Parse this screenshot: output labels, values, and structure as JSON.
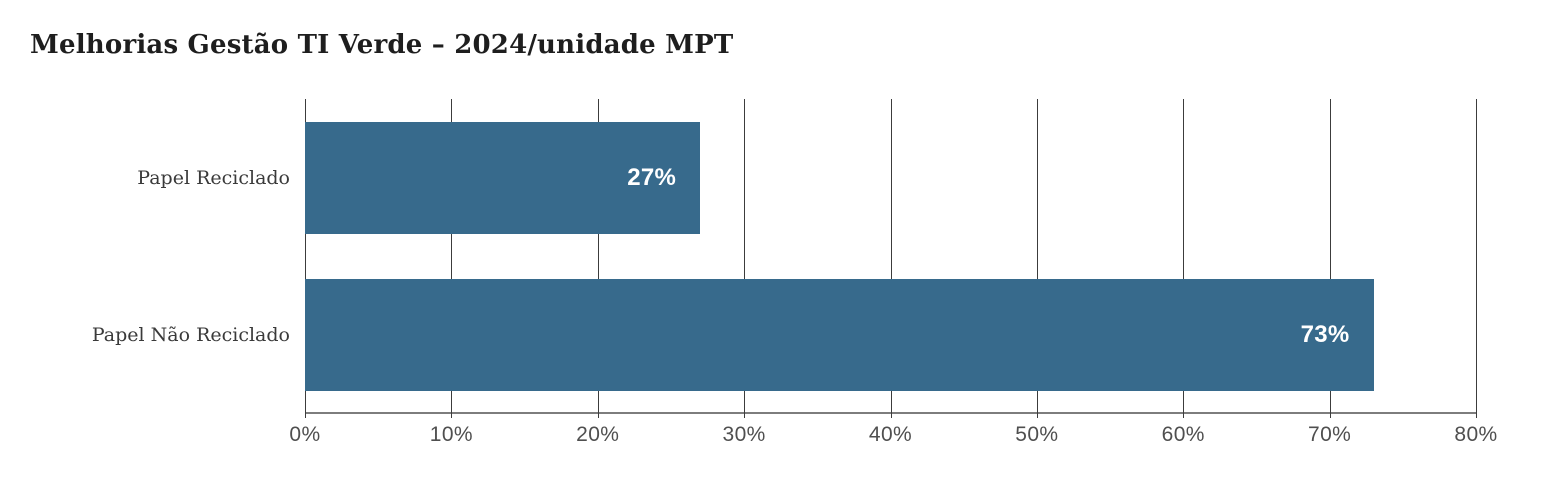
{
  "chart_data": {
    "type": "bar",
    "orientation": "horizontal",
    "title": "Melhorias Gestão TI Verde – 2024/unidade MPT",
    "categories": [
      "Papel Reciclado",
      "Papel Não Reciclado"
    ],
    "values": [
      27,
      73
    ],
    "value_labels": [
      "27%",
      "73%"
    ],
    "x_tick_labels": [
      "0%",
      "10%",
      "20%",
      "30%",
      "40%",
      "50%",
      "60%",
      "70%",
      "80%"
    ],
    "xlim": [
      0,
      80
    ],
    "xlabel": "",
    "ylabel": "",
    "grid": true,
    "legend": false,
    "colors": {
      "bar": "#376a8c",
      "value_label": "#ffffff",
      "gridline": "#3c3c3c",
      "axis_line": "#7d7d7d",
      "title_text": "#1e1e1e",
      "category_text": "#3a3a3a",
      "tick_text": "#4f4f4f",
      "background": "#ffffff"
    }
  }
}
